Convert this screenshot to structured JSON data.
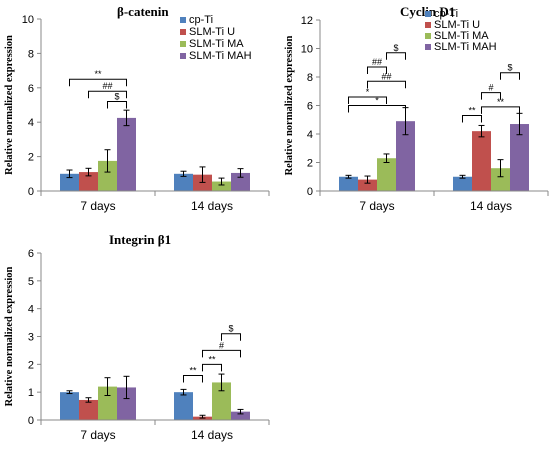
{
  "chart_data": [
    {
      "type": "bar",
      "title": "β-catenin",
      "ylabel": "Relative normalized expression",
      "xlabel": "",
      "categories": [
        "7 days",
        "14 days"
      ],
      "ylim": [
        0,
        10
      ],
      "yticks": [
        0,
        2,
        4,
        6,
        8,
        10
      ],
      "grid": false,
      "legend": "top-right",
      "series": [
        {
          "name": "cp-Ti",
          "color": "#4F81BD",
          "values": [
            1.0,
            1.0
          ],
          "errors": [
            0.22,
            0.15
          ]
        },
        {
          "name": "SLM-Ti U",
          "color": "#C0504D",
          "values": [
            1.1,
            0.95
          ],
          "errors": [
            0.22,
            0.45
          ]
        },
        {
          "name": "SLM-Ti MA",
          "color": "#9BBB59",
          "values": [
            1.75,
            0.55
          ],
          "errors": [
            0.65,
            0.2
          ]
        },
        {
          "name": "SLM-Ti MAH",
          "color": "#8064A2",
          "values": [
            4.25,
            1.05
          ],
          "errors": [
            0.45,
            0.25
          ]
        }
      ],
      "annotations": [
        {
          "text": "**",
          "group": 0,
          "from": 0,
          "to": 3,
          "level": 6.5
        },
        {
          "text": "##",
          "group": 0,
          "from": 1,
          "to": 3,
          "level": 5.8
        },
        {
          "text": "$",
          "group": 0,
          "from": 2,
          "to": 3,
          "level": 5.2
        }
      ]
    },
    {
      "type": "bar",
      "title": "Cyclin D1",
      "ylabel": "Relative normalized expression",
      "xlabel": "",
      "categories": [
        "7 days",
        "14 days"
      ],
      "ylim": [
        0,
        12
      ],
      "yticks": [
        0,
        2,
        4,
        6,
        8,
        10,
        12
      ],
      "grid": false,
      "legend": "top-right",
      "series": [
        {
          "name": "cp-Ti",
          "color": "#4F81BD",
          "values": [
            1.0,
            1.0
          ],
          "errors": [
            0.1,
            0.1
          ]
        },
        {
          "name": "SLM-Ti U",
          "color": "#C0504D",
          "values": [
            0.8,
            4.2
          ],
          "errors": [
            0.25,
            0.4
          ]
        },
        {
          "name": "SLM-Ti MA",
          "color": "#9BBB59",
          "values": [
            2.3,
            1.6
          ],
          "errors": [
            0.3,
            0.6
          ]
        },
        {
          "name": "SLM-Ti MAH",
          "color": "#8064A2",
          "values": [
            4.9,
            4.7
          ],
          "errors": [
            0.95,
            0.75
          ]
        }
      ],
      "annotations": [
        {
          "text": "*",
          "group": 0,
          "from": 0,
          "to": 3,
          "level": 6.0
        },
        {
          "text": "*",
          "group": 0,
          "from": 0,
          "to": 2,
          "level": 6.6
        },
        {
          "text": "##",
          "group": 0,
          "from": 1,
          "to": 3,
          "level": 7.7
        },
        {
          "text": "##",
          "group": 0,
          "from": 1,
          "to": 2,
          "level": 8.7
        },
        {
          "text": "$",
          "group": 0,
          "from": 2,
          "to": 3,
          "level": 9.7
        },
        {
          "text": "**",
          "group": 1,
          "from": 0,
          "to": 1,
          "level": 5.3
        },
        {
          "text": "**",
          "group": 1,
          "from": 1,
          "to": 3,
          "level": 5.9
        },
        {
          "text": "#",
          "group": 1,
          "from": 1,
          "to": 2,
          "level": 6.9
        },
        {
          "text": "$",
          "group": 1,
          "from": 2,
          "to": 3,
          "level": 8.3
        }
      ]
    },
    {
      "type": "bar",
      "title": "Integrin β1",
      "ylabel": "Relative normalized expression",
      "xlabel": "",
      "categories": [
        "7 days",
        "14 days"
      ],
      "ylim": [
        0,
        6
      ],
      "yticks": [
        0,
        1,
        2,
        3,
        4,
        5,
        6
      ],
      "grid": false,
      "legend": "none",
      "series": [
        {
          "name": "cp-Ti",
          "color": "#4F81BD",
          "values": [
            1.0,
            1.0
          ],
          "errors": [
            0.05,
            0.1
          ]
        },
        {
          "name": "SLM-Ti U",
          "color": "#C0504D",
          "values": [
            0.72,
            0.12
          ],
          "errors": [
            0.08,
            0.05
          ]
        },
        {
          "name": "SLM-Ti MA",
          "color": "#9BBB59",
          "values": [
            1.2,
            1.35
          ],
          "errors": [
            0.32,
            0.3
          ]
        },
        {
          "name": "SLM-Ti MAH",
          "color": "#8064A2",
          "values": [
            1.17,
            0.3
          ],
          "errors": [
            0.4,
            0.08
          ]
        }
      ],
      "annotations": [
        {
          "text": "**",
          "group": 1,
          "from": 0,
          "to": 1,
          "level": 1.6
        },
        {
          "text": "**",
          "group": 1,
          "from": 1,
          "to": 2,
          "level": 2.0
        },
        {
          "text": "#",
          "group": 1,
          "from": 1,
          "to": 3,
          "level": 2.5
        },
        {
          "text": "$",
          "group": 1,
          "from": 2,
          "to": 3,
          "level": 3.1
        }
      ]
    }
  ]
}
